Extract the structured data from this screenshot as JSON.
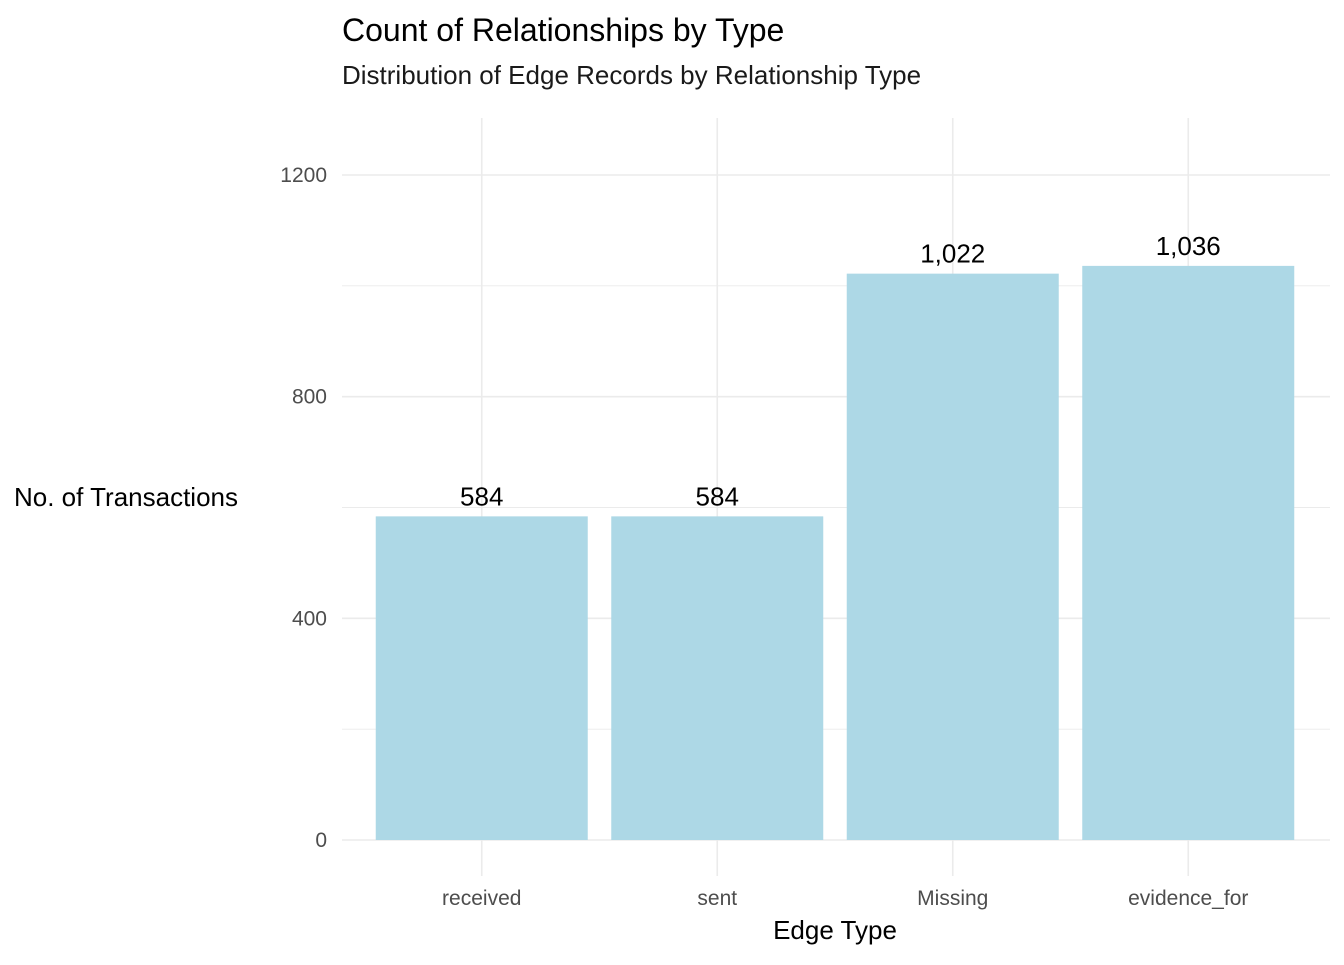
{
  "chart_data": {
    "type": "bar",
    "title": "Count of Relationships by Type",
    "subtitle": "Distribution of Edge Records by Relationship Type",
    "xlabel": "Edge Type",
    "ylabel": "No. of Transactions",
    "categories": [
      "received",
      "sent",
      "Missing",
      "evidence_for"
    ],
    "values": [
      584,
      584,
      1022,
      1036
    ],
    "data_labels": [
      "584",
      "584",
      "1,022",
      "1,036"
    ],
    "ylim": [
      0,
      1300
    ],
    "yticks": [
      0,
      400,
      800,
      1200
    ],
    "ytick_labels": [
      "0",
      "400",
      "800",
      "1200"
    ],
    "grid": true,
    "legend": "none",
    "bar_color": "#add8e6"
  }
}
